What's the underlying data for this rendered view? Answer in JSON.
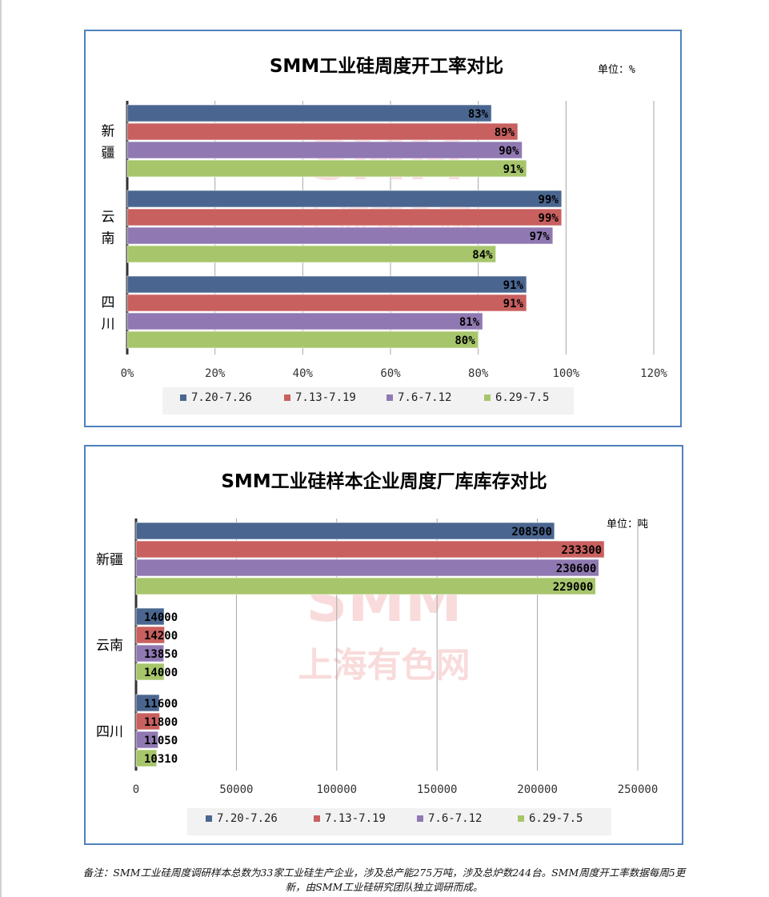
{
  "colors": {
    "series": [
      "#4a6690",
      "#c8605f",
      "#9079b2",
      "#a7c66c"
    ],
    "border": "#4f81bd",
    "axis": "#333333",
    "grid": "#a6a6a6",
    "watermark": "#f2b0b0"
  },
  "watermark": {
    "line1": "SMM",
    "line2": "上海有色网"
  },
  "chart_data": [
    {
      "type": "bar",
      "orientation": "horizontal",
      "title": "SMM工业硅周度开工率对比",
      "unit": "单位：%",
      "categories": [
        "新疆",
        "云南",
        "四川"
      ],
      "category_display": [
        [
          "新",
          "疆"
        ],
        [
          "云",
          "南"
        ],
        [
          "四",
          "川"
        ]
      ],
      "series": [
        {
          "name": "7.20-7.26",
          "values": [
            83,
            99,
            91
          ],
          "labels": [
            "83%",
            "99%",
            "91%"
          ]
        },
        {
          "name": "7.13-7.19",
          "values": [
            89,
            99,
            91
          ],
          "labels": [
            "89%",
            "99%",
            "91%"
          ]
        },
        {
          "name": "7.6-7.12",
          "values": [
            90,
            97,
            81
          ],
          "labels": [
            "90%",
            "97%",
            "81%"
          ]
        },
        {
          "name": "6.29-7.5",
          "values": [
            91,
            84,
            80
          ],
          "labels": [
            "91%",
            "84%",
            "80%"
          ]
        }
      ],
      "xlim": [
        0,
        120
      ],
      "xticks": [
        "0%",
        "20%",
        "40%",
        "60%",
        "80%",
        "100%",
        "120%"
      ],
      "grid": true,
      "legend": "bottom"
    },
    {
      "type": "bar",
      "orientation": "horizontal",
      "title": "SMM工业硅样本企业周度厂库库存对比",
      "unit": "单位：吨",
      "categories": [
        "新疆",
        "云南",
        "四川"
      ],
      "category_display": [
        [
          "新疆"
        ],
        [
          "云南"
        ],
        [
          "四川"
        ]
      ],
      "series": [
        {
          "name": "7.20-7.26",
          "values": [
            208500,
            14000,
            11600
          ],
          "labels": [
            "208500",
            "14000",
            "11600"
          ]
        },
        {
          "name": "7.13-7.19",
          "values": [
            233300,
            14200,
            11800
          ],
          "labels": [
            "233300",
            "14200",
            "11800"
          ]
        },
        {
          "name": "7.6-7.12",
          "values": [
            230600,
            13850,
            11050
          ],
          "labels": [
            "230600",
            "13850",
            "11050"
          ]
        },
        {
          "name": "6.29-7.5",
          "values": [
            229000,
            14000,
            10310
          ],
          "labels": [
            "229000",
            "14000",
            "10310"
          ]
        }
      ],
      "xlim": [
        0,
        250000
      ],
      "xticks": [
        "0",
        "50000",
        "100000",
        "150000",
        "200000",
        "250000"
      ],
      "grid": true,
      "legend": "bottom"
    }
  ],
  "footnote": "备注：SMM工业硅周度调研样本总数为33家工业硅生产企业，涉及总产能275万吨，涉及总炉数244台。SMM周度开工率数据每周5更新，由SMM工业硅研究团队独立调研而成。"
}
